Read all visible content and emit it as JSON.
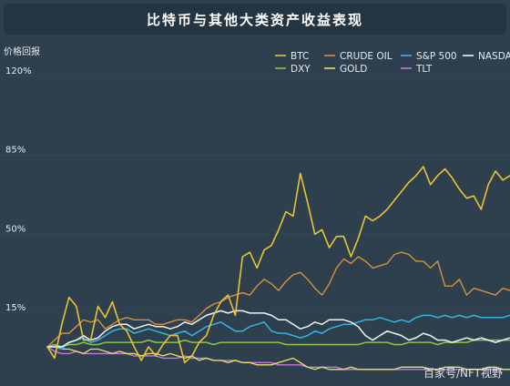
{
  "title": "比特币与其他大类资产收益表现",
  "watermark": "百家号/NFT视野",
  "chart_data": {
    "type": "line",
    "ylabel": "价格回报",
    "ylim": [
      -12,
      120
    ],
    "yticks": [
      {
        "value": 15,
        "label": "15%"
      },
      {
        "value": 50,
        "label": "50%"
      },
      {
        "value": 85,
        "label": "85%"
      },
      {
        "value": 120,
        "label": "120%"
      }
    ],
    "legend_position": "top-right",
    "series": [
      {
        "name": "BTC",
        "color": "#e8c437",
        "width": 1.6,
        "values": [
          0,
          -5,
          10,
          22,
          18,
          3,
          3,
          18,
          13,
          20,
          10,
          7,
          0,
          -6,
          0,
          -4,
          1,
          5,
          5,
          -7,
          -4,
          2,
          5,
          14,
          20,
          23,
          14,
          40,
          42,
          35,
          43,
          45,
          52,
          60,
          58,
          77,
          64,
          50,
          52,
          44,
          49,
          49,
          40,
          48,
          58,
          56,
          58,
          61,
          65,
          69,
          73,
          76,
          80,
          72,
          76,
          79,
          75,
          70,
          66,
          67,
          61,
          72,
          78,
          74,
          76
        ]
      },
      {
        "name": "CRUDE OIL",
        "color": "#d6913f",
        "width": 1.4,
        "values": [
          0,
          3,
          6,
          6,
          9,
          12,
          11,
          12,
          8,
          10,
          12,
          13,
          12,
          12,
          12,
          10,
          10,
          11,
          12,
          12,
          11,
          14,
          17,
          19,
          20,
          22,
          23,
          24,
          23,
          27,
          30,
          28,
          25,
          29,
          32,
          33,
          30,
          26,
          23,
          28,
          35,
          39,
          37,
          40,
          38,
          35,
          36,
          37,
          41,
          42,
          41,
          38,
          38,
          35,
          38,
          27,
          27,
          30,
          23,
          26,
          25,
          24,
          23,
          26,
          25
        ]
      },
      {
        "name": "S&P 500",
        "color": "#33b6e6",
        "width": 1.5,
        "values": [
          0,
          0,
          -1,
          2,
          3,
          4,
          2,
          3,
          5,
          7,
          8,
          8,
          6,
          7,
          8,
          7,
          6,
          5,
          6,
          7,
          5,
          7,
          9,
          10,
          11,
          9,
          7,
          7,
          9,
          10,
          11,
          7,
          6,
          6,
          5,
          4,
          5,
          7,
          6,
          8,
          9,
          10,
          10,
          11,
          12,
          12,
          13,
          12,
          11,
          12,
          11,
          13,
          14,
          14,
          13,
          14,
          13,
          14,
          13,
          14,
          13,
          13,
          13,
          13,
          14
        ]
      },
      {
        "name": "NASDAQ",
        "color": "#f2f4f5",
        "width": 1.5,
        "values": [
          0,
          0,
          0,
          2,
          3,
          5,
          3,
          4,
          7,
          9,
          10,
          10,
          8,
          9,
          10,
          9,
          9,
          8,
          9,
          11,
          10,
          12,
          14,
          15,
          16,
          15,
          16,
          16,
          15,
          15,
          15,
          14,
          12,
          12,
          10,
          8,
          9,
          11,
          10,
          12,
          12,
          12,
          11,
          9,
          5,
          3,
          5,
          7,
          6,
          5,
          3,
          4,
          6,
          5,
          3,
          3,
          2,
          3,
          4,
          3,
          4,
          3,
          2,
          3,
          4
        ]
      },
      {
        "name": "DXY",
        "color": "#8cc441",
        "width": 1.5,
        "values": [
          0,
          1,
          0,
          1,
          1,
          2,
          1,
          1,
          2,
          2,
          2,
          2,
          2,
          2,
          3,
          2,
          2,
          2,
          2,
          3,
          2,
          2,
          2,
          1,
          2,
          2,
          2,
          2,
          2,
          2,
          2,
          2,
          2,
          1,
          1,
          1,
          1,
          1,
          1,
          1,
          1,
          1,
          1,
          1,
          2,
          2,
          2,
          2,
          1,
          1,
          2,
          2,
          2,
          2,
          1,
          2,
          2,
          2,
          2,
          3,
          3,
          3,
          3,
          3,
          3
        ]
      },
      {
        "name": "GOLD",
        "color": "#e8e26a",
        "width": 1.3,
        "values": [
          0,
          1,
          -1,
          -1,
          -2,
          -3,
          -1,
          -1,
          -2,
          -3,
          -2,
          -3,
          -3,
          -4,
          -3,
          -3,
          -4,
          -3,
          -4,
          -5,
          -4,
          -6,
          -5,
          -6,
          -6,
          -7,
          -6,
          -7,
          -7,
          -8,
          -8,
          -8,
          -7,
          -6,
          -5,
          -7,
          -9,
          -10,
          -9,
          -10,
          -10,
          -10,
          -9,
          -10,
          -10,
          -10,
          -10,
          -10,
          -10,
          -9,
          -9,
          -9,
          -9,
          -10,
          -10,
          -9,
          -9,
          -9,
          -10,
          -10,
          -10,
          -9,
          -9,
          -10,
          -10
        ]
      },
      {
        "name": "TLT",
        "color": "#c57ae0",
        "width": 1.4,
        "values": [
          0,
          -2,
          -3,
          -3,
          -2,
          -3,
          -3,
          -3,
          -3,
          -3,
          -3,
          -3,
          -4,
          -4,
          -4,
          -4,
          -5,
          -5,
          -5,
          -4,
          -5,
          -5,
          -5,
          -6,
          -6,
          -6,
          -6,
          -7,
          -7,
          -7,
          -7,
          -7,
          -8,
          -8,
          -8,
          -8,
          -9,
          -9,
          -9,
          -9,
          -9,
          -10,
          -10,
          -10,
          -10,
          -10,
          -10,
          -10,
          -10,
          -10,
          -10,
          -10,
          -10,
          -10,
          -10,
          -10,
          -10,
          -10,
          -10,
          -10,
          -10,
          -10,
          -10,
          -10,
          -10
        ]
      }
    ]
  }
}
